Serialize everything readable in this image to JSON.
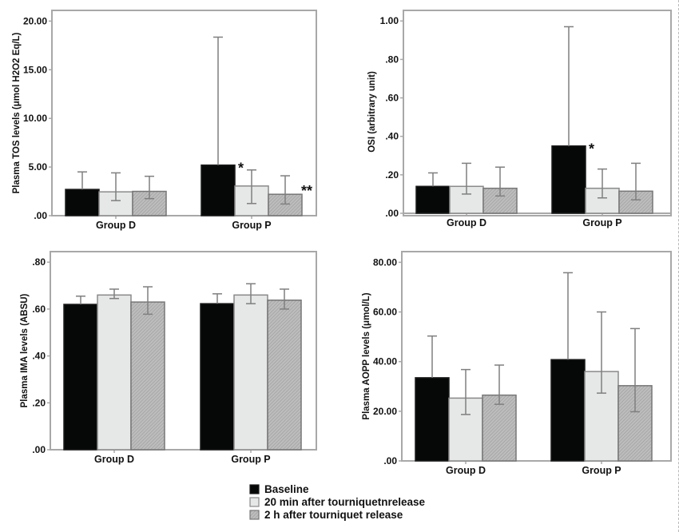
{
  "colors": {
    "baseline": "#060808",
    "min20": "#e6e7e7",
    "h2": "#b5b5b5",
    "frame": "#a8a8a8",
    "errorbar": "#7f7f7f"
  },
  "legend": {
    "items": [
      {
        "key": "baseline",
        "label": "Baseline"
      },
      {
        "key": "min20",
        "label": "20 min after tourniquetnrelease"
      },
      {
        "key": "h2",
        "label": "2 h after tourniquet release"
      }
    ],
    "placement": "bottom-center"
  },
  "chart_data": [
    {
      "type": "bar",
      "id": "tos",
      "title": "",
      "xlabel": "",
      "ylabel": "Plasma TOS levels (μmol H2O2 Eq/L)",
      "ylim": [
        0,
        21.1
      ],
      "yticks": [
        0,
        5,
        10,
        15,
        20
      ],
      "ytick_labels": [
        ".00",
        "5.00",
        "10.00",
        "15.00",
        "20.00"
      ],
      "categories": [
        "Group D",
        "Group P"
      ],
      "series": [
        {
          "name": "Baseline",
          "key": "baseline",
          "values": [
            2.7,
            5.2
          ],
          "err_low": [
            null,
            null
          ],
          "err_high": [
            4.5,
            18.35
          ]
        },
        {
          "name": "20 min after tourniquetnrelease",
          "key": "min20",
          "values": [
            2.45,
            3.05
          ],
          "err_low": [
            1.55,
            1.25
          ],
          "err_high": [
            4.4,
            4.7
          ]
        },
        {
          "name": "2 h after tourniquet release",
          "key": "h2",
          "values": [
            2.5,
            2.2
          ],
          "err_low": [
            1.75,
            1.2
          ],
          "err_high": [
            4.05,
            4.1
          ]
        }
      ],
      "annotations": [
        {
          "text": "*",
          "category": "Group P",
          "series": "Baseline"
        },
        {
          "text": "**",
          "category": "Group P",
          "series": "2 h after tourniquet release"
        }
      ],
      "grid": false
    },
    {
      "type": "bar",
      "id": "osi",
      "title": "",
      "xlabel": "",
      "ylabel": "OSI (arbitrary unit)",
      "ylim": [
        0,
        1.055
      ],
      "yticks": [
        0,
        0.2,
        0.4,
        0.6,
        0.8,
        1.0
      ],
      "ytick_labels": [
        ".00",
        ".20",
        ".40",
        ".60",
        ".80",
        "1.00"
      ],
      "categories": [
        "Group D",
        "Group P"
      ],
      "series": [
        {
          "name": "Baseline",
          "key": "baseline",
          "values": [
            0.14,
            0.35
          ],
          "err_low": [
            null,
            null
          ],
          "err_high": [
            0.21,
            0.97
          ]
        },
        {
          "name": "20 min after tourniquetnrelease",
          "key": "min20",
          "values": [
            0.14,
            0.13
          ],
          "err_low": [
            0.1,
            0.08
          ],
          "err_high": [
            0.26,
            0.23
          ]
        },
        {
          "name": "2 h after tourniquet release",
          "key": "h2",
          "values": [
            0.13,
            0.115
          ],
          "err_low": [
            0.09,
            0.07
          ],
          "err_high": [
            0.24,
            0.26
          ]
        }
      ],
      "annotations": [
        {
          "text": "*",
          "category": "Group P",
          "series": "Baseline"
        }
      ],
      "grid": false
    },
    {
      "type": "bar",
      "id": "ima",
      "title": "",
      "xlabel": "",
      "ylabel": "Plasma IMA levels (ABSU)",
      "ylim": [
        0,
        0.845
      ],
      "yticks": [
        0,
        0.2,
        0.4,
        0.6,
        0.8
      ],
      "ytick_labels": [
        ".00",
        ".20",
        ".40",
        ".60",
        ".80"
      ],
      "categories": [
        "Group D",
        "Group P"
      ],
      "series": [
        {
          "name": "Baseline",
          "key": "baseline",
          "values": [
            0.62,
            0.623
          ],
          "err_low": [
            null,
            null
          ],
          "err_high": [
            0.655,
            0.665
          ]
        },
        {
          "name": "20 min after tourniquetnrelease",
          "key": "min20",
          "values": [
            0.66,
            0.66
          ],
          "err_low": [
            0.645,
            0.623
          ],
          "err_high": [
            0.685,
            0.708
          ]
        },
        {
          "name": "2 h after tourniquet release",
          "key": "h2",
          "values": [
            0.63,
            0.638
          ],
          "err_low": [
            0.578,
            0.6
          ],
          "err_high": [
            0.695,
            0.685
          ]
        }
      ],
      "annotations": [],
      "grid": false
    },
    {
      "type": "bar",
      "id": "aopp",
      "title": "",
      "xlabel": "",
      "ylabel": "Plasma AOPP levels (μmol/L)",
      "ylim": [
        0,
        84.3
      ],
      "yticks": [
        0,
        20,
        40,
        60,
        80
      ],
      "ytick_labels": [
        ".00",
        "20.00",
        "40.00",
        "60.00",
        "80.00"
      ],
      "categories": [
        "Group D",
        "Group P"
      ],
      "series": [
        {
          "name": "Baseline",
          "key": "baseline",
          "values": [
            33.5,
            40.8
          ],
          "err_low": [
            null,
            null
          ],
          "err_high": [
            50.3,
            75.8
          ]
        },
        {
          "name": "20 min after tourniquetnrelease",
          "key": "min20",
          "values": [
            25.3,
            36.0
          ],
          "err_low": [
            18.7,
            27.3
          ],
          "err_high": [
            36.8,
            60.0
          ]
        },
        {
          "name": "2 h after tourniquet release",
          "key": "h2",
          "values": [
            26.5,
            30.3
          ],
          "err_low": [
            22.8,
            19.8
          ],
          "err_high": [
            38.6,
            53.3
          ]
        }
      ],
      "annotations": [],
      "grid": false
    }
  ]
}
